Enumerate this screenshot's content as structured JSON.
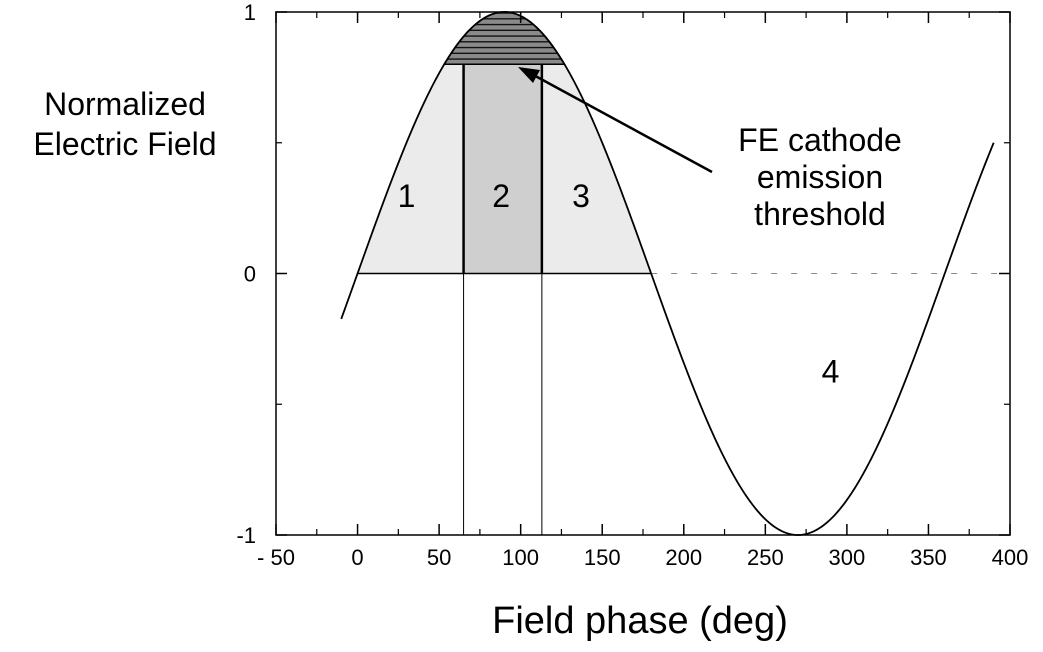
{
  "chart_data": {
    "type": "line",
    "title": "",
    "ylabel": "Normalized Electric Field",
    "xlabel": "Field phase (deg)",
    "xlim": [
      -50,
      400
    ],
    "ylim": [
      -1,
      1
    ],
    "xticks": [
      -50,
      0,
      50,
      100,
      150,
      200,
      250,
      300,
      350,
      400
    ],
    "yticks": [
      -1,
      0,
      1
    ],
    "series": [
      {
        "function": "sin(phase)",
        "x": [
          -10,
          0,
          30,
          60,
          90,
          120,
          150,
          180,
          210,
          240,
          270,
          300,
          330,
          360,
          390
        ],
        "y": [
          -0.17,
          0,
          0.5,
          0.87,
          1,
          0.87,
          0.5,
          0,
          -0.5,
          -0.87,
          -1,
          -0.87,
          -0.5,
          0,
          0.5
        ]
      }
    ],
    "threshold": {
      "y": 0.8,
      "label": "FE cathode emission threshold"
    },
    "vertical_lines": [
      65,
      113
    ],
    "regions": [
      {
        "label": "1",
        "x": 30,
        "y": 0.3
      },
      {
        "label": "2",
        "x": 88,
        "y": 0.3
      },
      {
        "label": "3",
        "x": 137,
        "y": 0.3
      },
      {
        "label": "4",
        "x": 290,
        "y": -0.37
      }
    ],
    "grid": false
  }
}
